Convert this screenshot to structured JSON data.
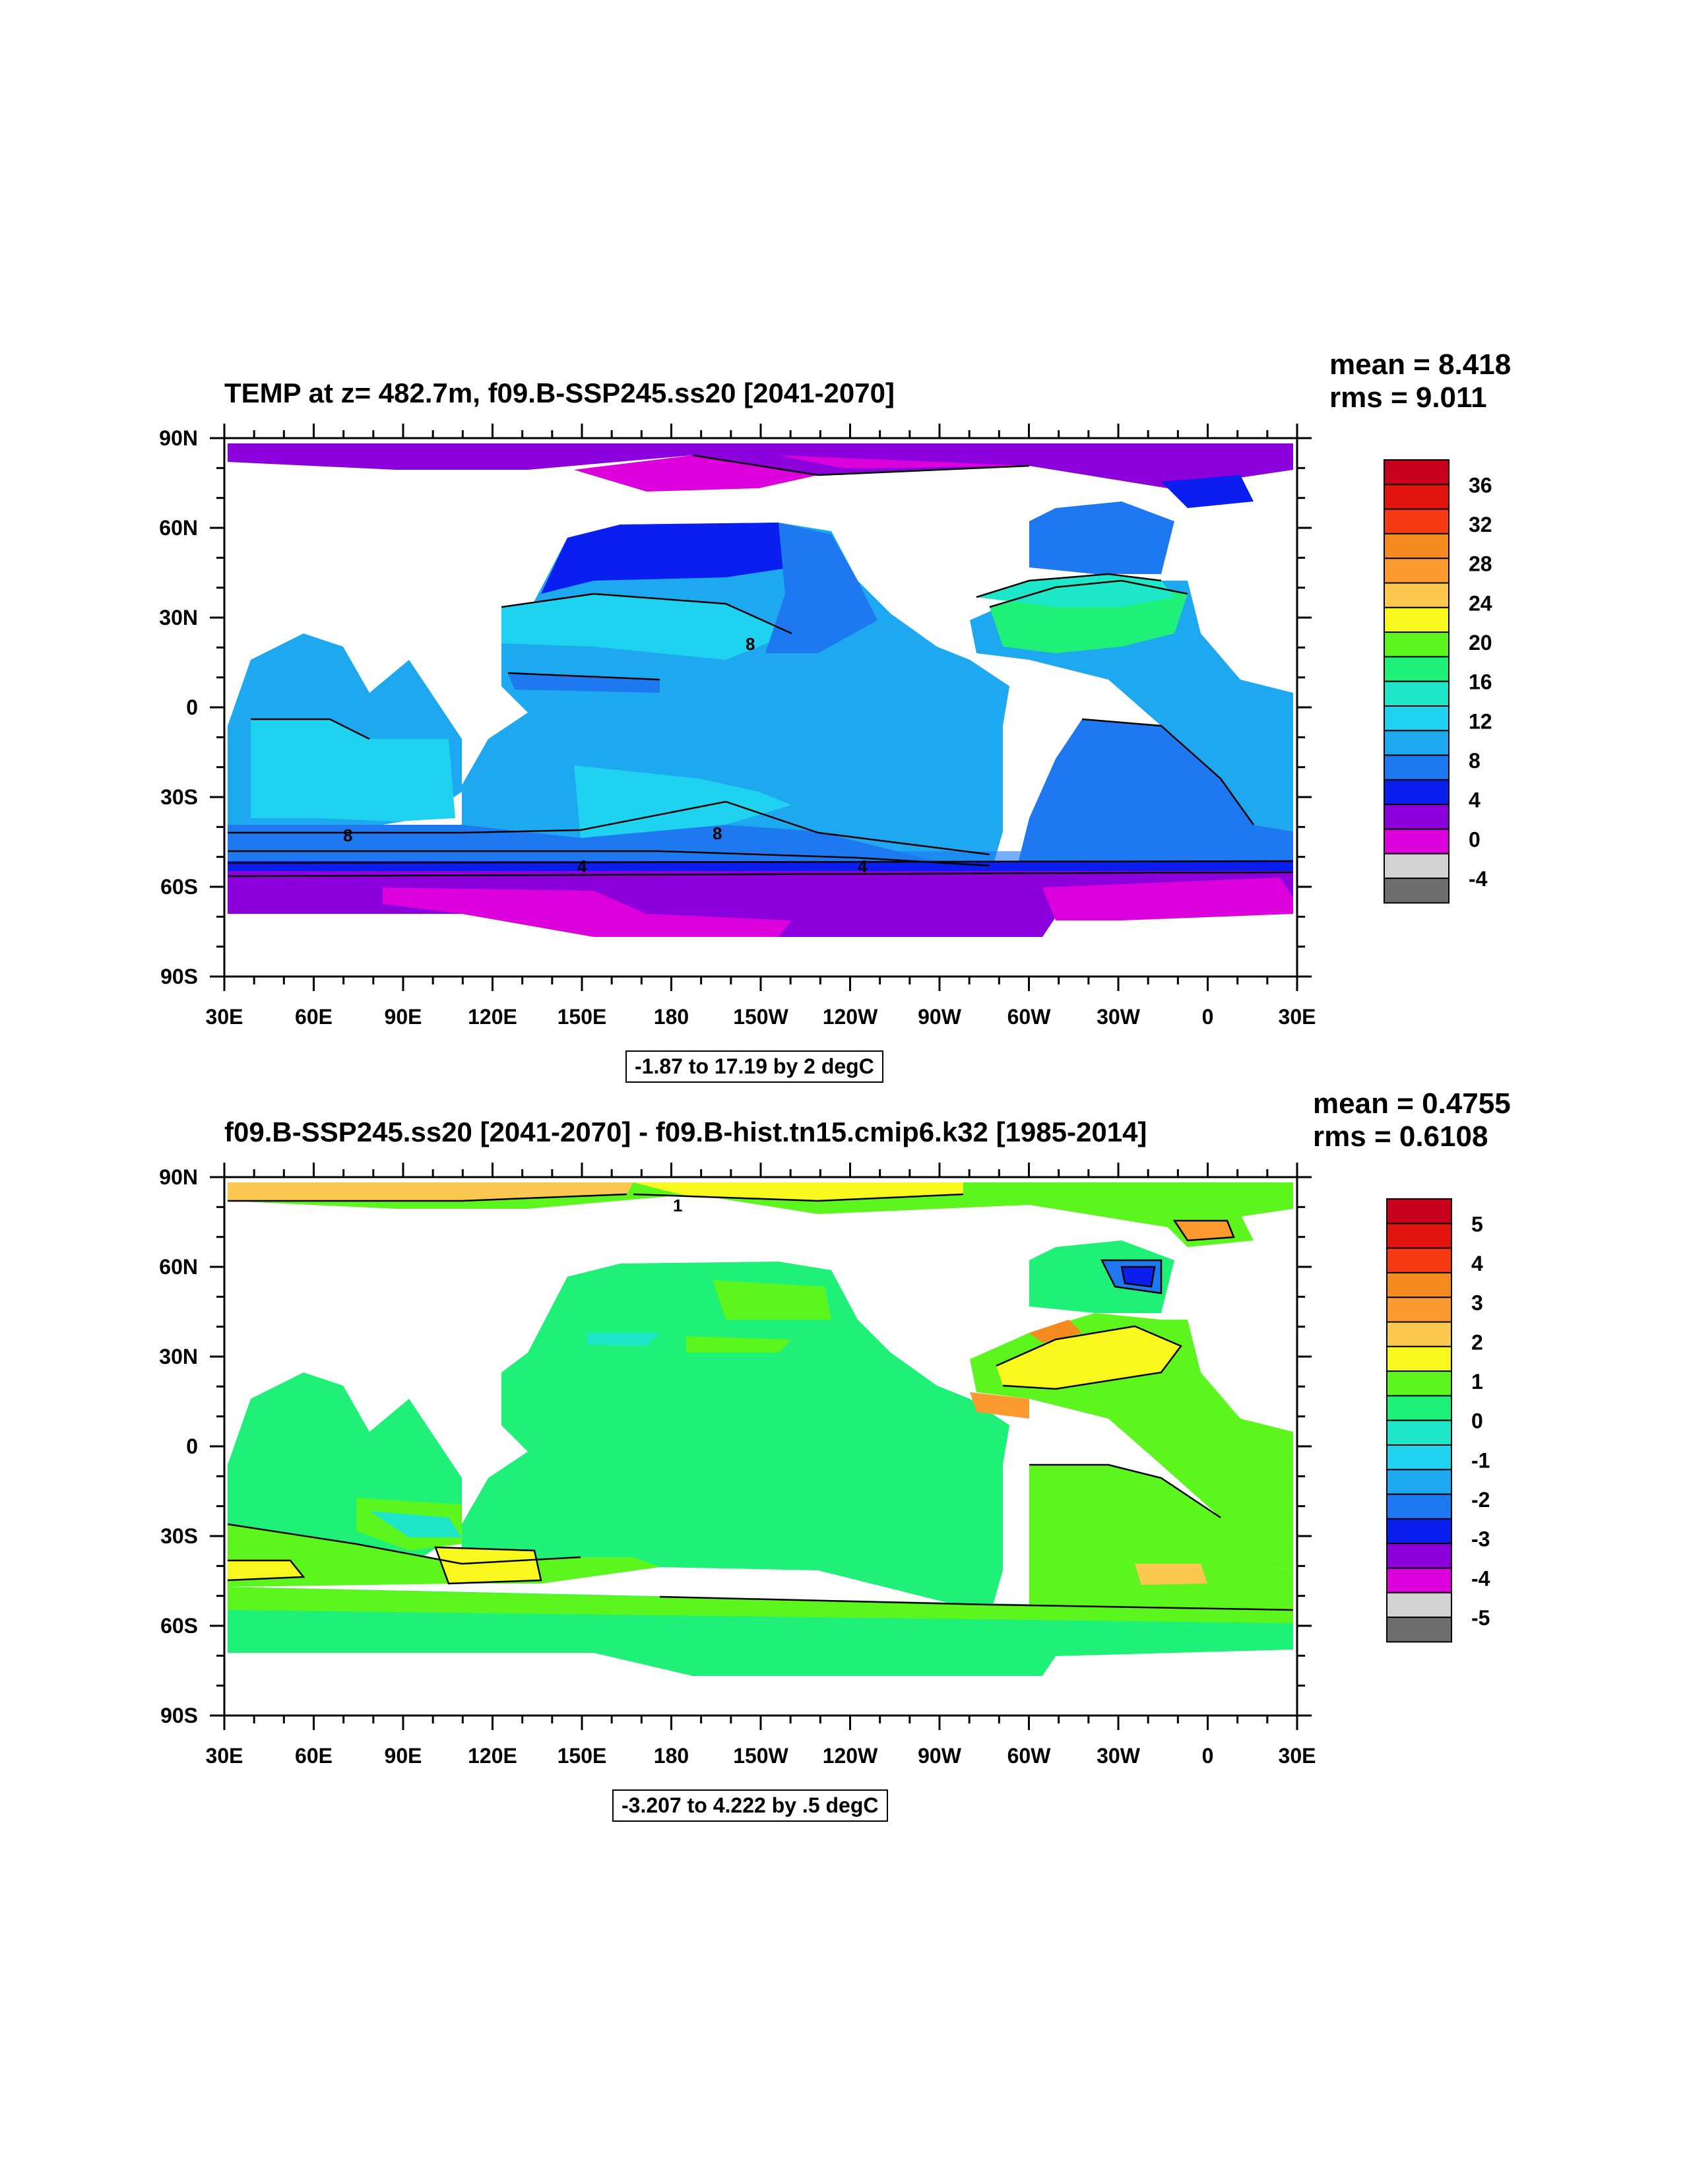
{
  "panels": [
    {
      "title": "TEMP at z= 482.7m, f09.B-SSP245.ss20 [2041-2070]",
      "mean": "mean = 8.418",
      "rms": "rms = 9.011",
      "contour_info": "-1.87 to 17.19 by 2 degC",
      "colorbar_labels": [
        "36",
        "32",
        "28",
        "24",
        "20",
        "16",
        "12",
        "8",
        "4",
        "0",
        "-4"
      ],
      "colorbar_colors": [
        "#c8001e",
        "#e3130f",
        "#f53a14",
        "#f58a1e",
        "#fb9a2e",
        "#fdc850",
        "#f8f81e",
        "#5cf51e",
        "#1ef078",
        "#1ee6c8",
        "#1ed2f0",
        "#1ea8f0",
        "#1e78f0",
        "#0a1ef0",
        "#8c00dc",
        "#dc00dc",
        "#d2d2d2",
        "#6e6e6e"
      ],
      "contour_labels": [
        "8",
        "8",
        "8",
        "4",
        "4"
      ]
    },
    {
      "title": "f09.B-SSP245.ss20 [2041-2070] - f09.B-hist.tn15.cmip6.k32 [1985-2014]",
      "mean": "mean = 0.4755",
      "rms": "rms = 0.6108",
      "contour_info": "-3.207 to 4.222 by .5 degC",
      "colorbar_labels": [
        "5",
        "4",
        "3",
        "2",
        "1",
        "0",
        "-1",
        "-2",
        "-3",
        "-4",
        "-5"
      ],
      "colorbar_colors": [
        "#c8001e",
        "#e3130f",
        "#f53a14",
        "#f58a1e",
        "#fb9a2e",
        "#fdc850",
        "#f8f81e",
        "#5cf51e",
        "#1ef078",
        "#1ee6c8",
        "#1ed2f0",
        "#1ea8f0",
        "#1e78f0",
        "#0a1ef0",
        "#8c00dc",
        "#dc00dc",
        "#d2d2d2",
        "#6e6e6e"
      ],
      "contour_labels": [
        "1"
      ]
    }
  ],
  "axes": {
    "lat_labels": [
      "90N",
      "60N",
      "30N",
      "0",
      "30S",
      "60S",
      "90S"
    ],
    "lon_labels": [
      "30E",
      "60E",
      "90E",
      "120E",
      "150E",
      "180",
      "150W",
      "120W",
      "90W",
      "60W",
      "30W",
      "0",
      "30E"
    ]
  }
}
